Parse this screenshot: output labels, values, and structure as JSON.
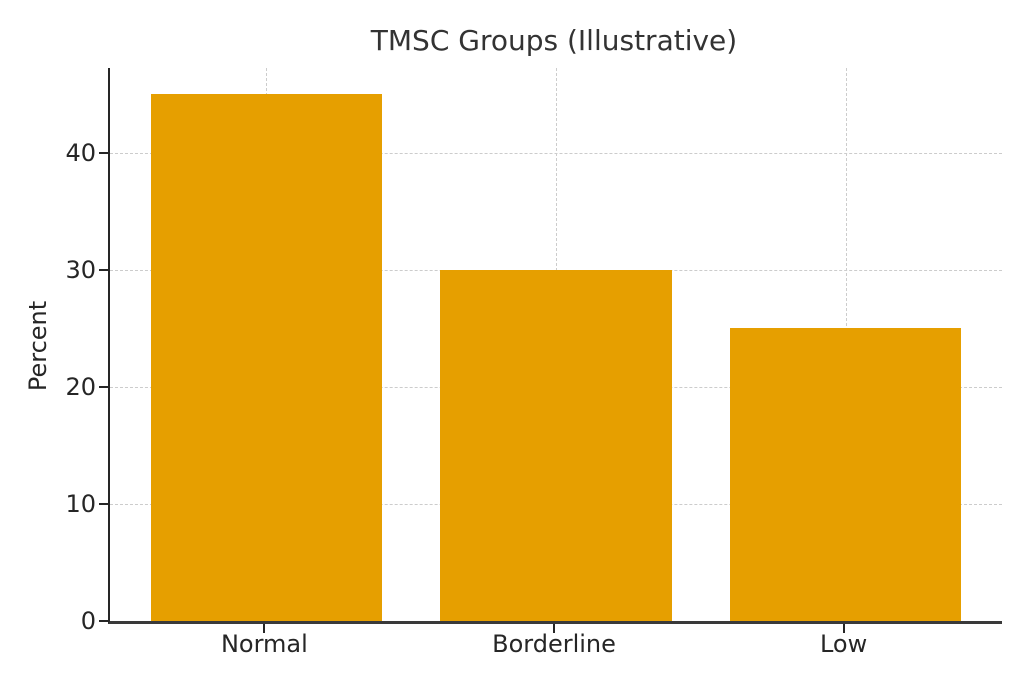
{
  "chart_data": {
    "type": "bar",
    "title": "TMSC Groups (Illustrative)",
    "categories": [
      "Normal",
      "Borderline",
      "Low"
    ],
    "values": [
      45,
      30,
      25
    ],
    "xlabel": "",
    "ylabel": "Percent",
    "ylim": [
      0,
      47.25
    ],
    "yticks": [
      0,
      10,
      20,
      30,
      40
    ],
    "grid": "both-dashed",
    "legend_position": "none",
    "colors": {
      "bar": "#E69F00",
      "axis": "#262626",
      "grid": "#cccccc",
      "title_text": "#333333",
      "tick_text": "#262626",
      "background": "#ffffff"
    }
  }
}
